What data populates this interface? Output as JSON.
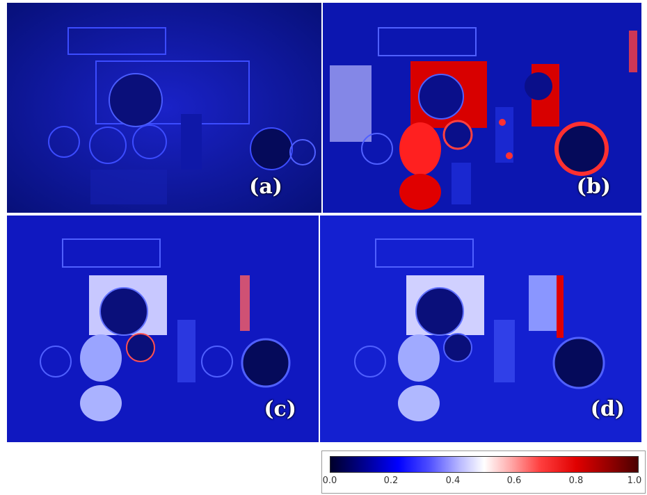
{
  "panels": [
    {
      "id": "a",
      "label": "(a)"
    },
    {
      "id": "b",
      "label": "(b)"
    },
    {
      "id": "c",
      "label": "(c)"
    },
    {
      "id": "d",
      "label": "(d)"
    }
  ],
  "colorbar": {
    "ticks": [
      "0.0",
      "0.2",
      "0.4",
      "0.6",
      "0.8",
      "1.0"
    ],
    "colormap": "seismic",
    "colors": {
      "low": "#00002a",
      "mid_low": "#0000ff",
      "middle": "#ffffff",
      "mid_high": "#ff4040",
      "high": "#4a0000"
    }
  }
}
